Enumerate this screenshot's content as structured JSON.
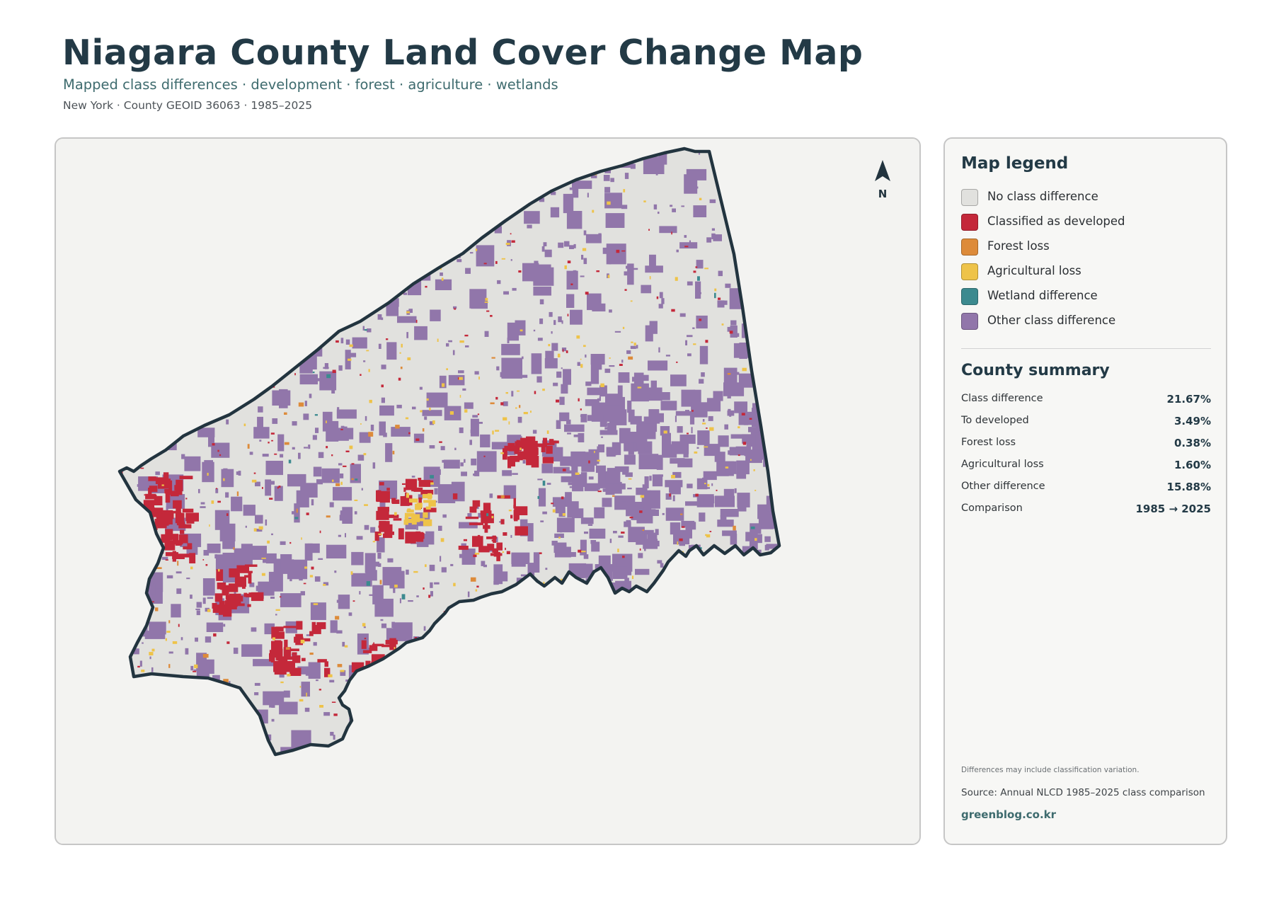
{
  "header": {
    "title": "Niagara County Land Cover Change Map",
    "subtitle": "Mapped class differences · development · forest · agriculture · wetlands",
    "meta": "New York · County GEOID 36063 · 1985–2025"
  },
  "map": {
    "north_label": "N",
    "colors": {
      "background": "#f3f3f1",
      "county_fill": "#e1e1de",
      "outline": "#22343f",
      "developed": "#c4283a",
      "forest_loss": "#dd8b3a",
      "agricultural_loss": "#eec349",
      "wetland": "#3c8a8f",
      "other": "#9176aa"
    }
  },
  "legend": {
    "title": "Map legend",
    "items": [
      {
        "label": "No class difference",
        "color": "#e1e1de"
      },
      {
        "label": "Classified as developed",
        "color": "#c4283a"
      },
      {
        "label": "Forest loss",
        "color": "#dd8b3a"
      },
      {
        "label": "Agricultural loss",
        "color": "#eec349"
      },
      {
        "label": "Wetland difference",
        "color": "#3c8a8f"
      },
      {
        "label": "Other class difference",
        "color": "#9176aa"
      }
    ]
  },
  "summary": {
    "title": "County summary",
    "rows": [
      {
        "label": "Class difference",
        "value": "21.67%"
      },
      {
        "label": "To developed",
        "value": "3.49%"
      },
      {
        "label": "Forest loss",
        "value": "0.38%"
      },
      {
        "label": "Agricultural loss",
        "value": "1.60%"
      },
      {
        "label": "Other difference",
        "value": "15.88%"
      },
      {
        "label": "Comparison",
        "value": "1985 → 2025"
      }
    ]
  },
  "footer": {
    "note": "Differences may include classification variation.",
    "source": "Source: Annual NLCD 1985–2025 class comparison",
    "site": "greenblog.co.kr"
  }
}
